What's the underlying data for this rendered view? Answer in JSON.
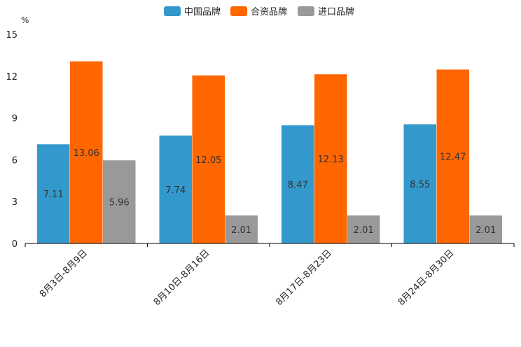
{
  "chart_data": {
    "type": "bar",
    "ylabel": "%",
    "ylim": [
      0,
      15
    ],
    "yticks": [
      "0",
      "3",
      "6",
      "9",
      "12",
      "15"
    ],
    "ytick_values": [
      0,
      3,
      6,
      9,
      12,
      15
    ],
    "categories": [
      "8月3日-8月9日",
      "8月10日-8月16日",
      "8月17日-8月23日",
      "8月24日-8月30日"
    ],
    "series": [
      {
        "name": "中国品牌",
        "color": "#3399cc",
        "values": [
          7.11,
          7.74,
          8.47,
          8.55
        ],
        "labels": [
          "7.11",
          "7.74",
          "8.47",
          "8.55"
        ]
      },
      {
        "name": "合资品牌",
        "color": "#ff6600",
        "values": [
          13.06,
          12.05,
          12.13,
          12.47
        ],
        "labels": [
          "13.06",
          "12.05",
          "12.13",
          "12.47"
        ]
      },
      {
        "name": "进口品牌",
        "color": "#999999",
        "values": [
          5.96,
          2.01,
          2.01,
          2.01
        ],
        "labels": [
          "5.96",
          "2.01",
          "2.01",
          "2.01"
        ]
      }
    ],
    "legend_position": "top-center",
    "grid": false
  }
}
